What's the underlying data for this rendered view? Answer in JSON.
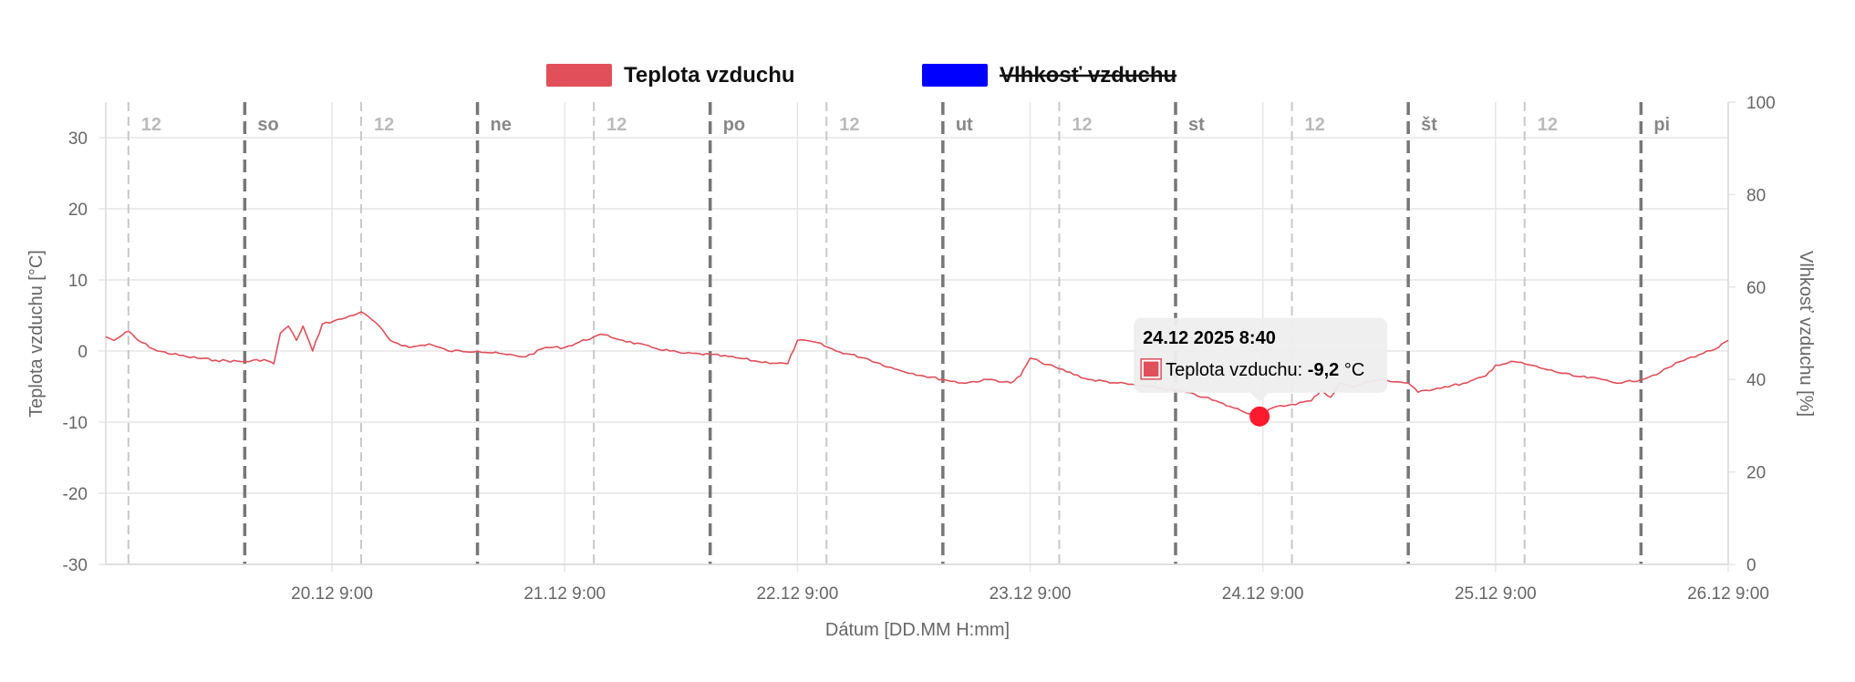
{
  "chart_data": {
    "type": "line",
    "legend": {
      "position": "top-center",
      "items": [
        {
          "label": "Teplota vzduchu",
          "color": "#e04f5a",
          "hidden": false
        },
        {
          "label": "Vlhkosť vzduchu",
          "color": "#0000ff",
          "hidden": true
        }
      ]
    },
    "xlabel": "Dátum [DD.MM H:mm]",
    "ylabel_left": "Teplota vzduchu [°C]",
    "ylabel_right": "Vlhkosť vzduchu [%]",
    "ylim_left": [
      -30,
      35
    ],
    "yticks_left": [
      30,
      20,
      10,
      0,
      -10,
      -20,
      -30
    ],
    "ylim_right": [
      0,
      100
    ],
    "yticks_right": [
      100,
      80,
      60,
      40,
      20,
      0
    ],
    "xlim": [
      "2025-12-19T09:40",
      "2025-12-26T09:00"
    ],
    "xticks": [
      {
        "t": "2025-12-20T09:00",
        "label": "20.12 9:00"
      },
      {
        "t": "2025-12-21T09:00",
        "label": "21.12 9:00"
      },
      {
        "t": "2025-12-22T09:00",
        "label": "22.12 9:00"
      },
      {
        "t": "2025-12-23T09:00",
        "label": "23.12 9:00"
      },
      {
        "t": "2025-12-24T09:00",
        "label": "24.12 9:00"
      },
      {
        "t": "2025-12-25T09:00",
        "label": "25.12 9:00"
      },
      {
        "t": "2025-12-26T09:00",
        "label": "26.12 9:00"
      }
    ],
    "day_markers": [
      {
        "t": "2025-12-20T00:00",
        "label": "so"
      },
      {
        "t": "2025-12-21T00:00",
        "label": "ne"
      },
      {
        "t": "2025-12-22T00:00",
        "label": "po"
      },
      {
        "t": "2025-12-23T00:00",
        "label": "ut"
      },
      {
        "t": "2025-12-24T00:00",
        "label": "st"
      },
      {
        "t": "2025-12-25T00:00",
        "label": "št"
      },
      {
        "t": "2025-12-26T00:00",
        "label": "pi"
      }
    ],
    "noon_markers": [
      {
        "t": "2025-12-19T12:00",
        "label": "12"
      },
      {
        "t": "2025-12-20T12:00",
        "label": "12"
      },
      {
        "t": "2025-12-21T12:00",
        "label": "12"
      },
      {
        "t": "2025-12-22T12:00",
        "label": "12"
      },
      {
        "t": "2025-12-23T12:00",
        "label": "12"
      },
      {
        "t": "2025-12-24T12:00",
        "label": "12"
      },
      {
        "t": "2025-12-25T12:00",
        "label": "12"
      }
    ],
    "grid": true,
    "series": [
      {
        "name": "Teplota vzduchu",
        "axis": "left",
        "color": "#e04f5a",
        "points": [
          [
            "2025-12-19T09:40",
            2.0
          ],
          [
            "2025-12-19T10:30",
            1.5
          ],
          [
            "2025-12-19T11:20",
            2.2
          ],
          [
            "2025-12-19T12:00",
            2.8
          ],
          [
            "2025-12-19T13:00",
            1.5
          ],
          [
            "2025-12-19T15:00",
            0.0
          ],
          [
            "2025-12-19T18:00",
            -0.8
          ],
          [
            "2025-12-19T21:00",
            -1.3
          ],
          [
            "2025-12-20T00:00",
            -1.5
          ],
          [
            "2025-12-20T02:00",
            -1.2
          ],
          [
            "2025-12-20T03:00",
            -1.8
          ],
          [
            "2025-12-20T03:40",
            2.5
          ],
          [
            "2025-12-20T04:30",
            3.5
          ],
          [
            "2025-12-20T05:20",
            1.5
          ],
          [
            "2025-12-20T06:00",
            3.5
          ],
          [
            "2025-12-20T07:00",
            0.0
          ],
          [
            "2025-12-20T08:00",
            3.8
          ],
          [
            "2025-12-20T10:00",
            4.5
          ],
          [
            "2025-12-20T12:00",
            5.5
          ],
          [
            "2025-12-20T13:30",
            4.0
          ],
          [
            "2025-12-20T15:00",
            1.5
          ],
          [
            "2025-12-20T17:00",
            0.5
          ],
          [
            "2025-12-20T19:00",
            1.0
          ],
          [
            "2025-12-20T21:00",
            0.0
          ],
          [
            "2025-12-21T00:00",
            0.0
          ],
          [
            "2025-12-21T03:00",
            -0.5
          ],
          [
            "2025-12-21T05:00",
            -0.8
          ],
          [
            "2025-12-21T07:00",
            0.5
          ],
          [
            "2025-12-21T09:00",
            0.5
          ],
          [
            "2025-12-21T12:00",
            2.0
          ],
          [
            "2025-12-21T13:00",
            2.3
          ],
          [
            "2025-12-21T15:00",
            1.5
          ],
          [
            "2025-12-21T18:00",
            0.5
          ],
          [
            "2025-12-21T21:00",
            -0.3
          ],
          [
            "2025-12-22T00:00",
            -0.5
          ],
          [
            "2025-12-22T03:00",
            -1.0
          ],
          [
            "2025-12-22T05:00",
            -1.5
          ],
          [
            "2025-12-22T08:00",
            -1.8
          ],
          [
            "2025-12-22T09:00",
            1.5
          ],
          [
            "2025-12-22T11:00",
            1.2
          ],
          [
            "2025-12-22T13:00",
            0.0
          ],
          [
            "2025-12-22T16:00",
            -1.0
          ],
          [
            "2025-12-22T19:00",
            -2.5
          ],
          [
            "2025-12-22T22:00",
            -3.5
          ],
          [
            "2025-12-23T00:00",
            -4.0
          ],
          [
            "2025-12-23T02:00",
            -4.5
          ],
          [
            "2025-12-23T05:00",
            -4.0
          ],
          [
            "2025-12-23T07:00",
            -4.5
          ],
          [
            "2025-12-23T08:00",
            -3.5
          ],
          [
            "2025-12-23T09:00",
            -1.0
          ],
          [
            "2025-12-23T10:00",
            -1.5
          ],
          [
            "2025-12-23T12:00",
            -2.5
          ],
          [
            "2025-12-23T15:00",
            -4.0
          ],
          [
            "2025-12-23T18:00",
            -4.5
          ],
          [
            "2025-12-23T21:00",
            -5.0
          ],
          [
            "2025-12-24T00:00",
            -5.5
          ],
          [
            "2025-12-24T03:00",
            -6.5
          ],
          [
            "2025-12-24T06:00",
            -8.0
          ],
          [
            "2025-12-24T08:40",
            -9.2
          ],
          [
            "2025-12-24T10:00",
            -8.0
          ],
          [
            "2025-12-24T12:00",
            -7.5
          ],
          [
            "2025-12-24T14:00",
            -7.0
          ],
          [
            "2025-12-24T15:00",
            -5.5
          ],
          [
            "2025-12-24T16:00",
            -6.5
          ],
          [
            "2025-12-24T17:00",
            -4.5
          ],
          [
            "2025-12-24T18:00",
            -5.0
          ],
          [
            "2025-12-24T21:00",
            -4.0
          ],
          [
            "2025-12-25T00:00",
            -4.5
          ],
          [
            "2025-12-25T01:00",
            -5.8
          ],
          [
            "2025-12-25T03:00",
            -5.2
          ],
          [
            "2025-12-25T06:00",
            -4.5
          ],
          [
            "2025-12-25T08:00",
            -3.5
          ],
          [
            "2025-12-25T09:00",
            -2.0
          ],
          [
            "2025-12-25T11:00",
            -1.5
          ],
          [
            "2025-12-25T12:00",
            -1.8
          ],
          [
            "2025-12-25T14:00",
            -2.5
          ],
          [
            "2025-12-25T17:00",
            -3.5
          ],
          [
            "2025-12-25T20:00",
            -4.0
          ],
          [
            "2025-12-25T22:00",
            -4.5
          ],
          [
            "2025-12-26T00:00",
            -4.0
          ],
          [
            "2025-12-26T02:00",
            -3.0
          ],
          [
            "2025-12-26T04:00",
            -1.5
          ],
          [
            "2025-12-26T06:00",
            -0.5
          ],
          [
            "2025-12-26T08:00",
            0.5
          ],
          [
            "2025-12-26T09:00",
            1.5
          ]
        ]
      },
      {
        "name": "Vlhkosť vzduchu",
        "axis": "right",
        "color": "#0000ff",
        "hidden": true,
        "points": []
      }
    ],
    "tooltip": {
      "title": "24.12 2025 8:40",
      "label": "Teplota vzduchu:",
      "value": "-9,2",
      "unit": "°C",
      "t": "2025-12-24T08:40",
      "y": -9.2
    }
  }
}
